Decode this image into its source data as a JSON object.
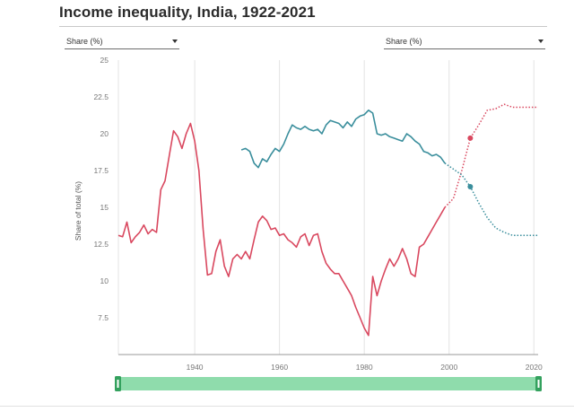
{
  "title": "Income inequality, India, 1922-2021",
  "selectors": {
    "left": {
      "value": "Share (%)"
    },
    "right": {
      "value": "Share (%)"
    }
  },
  "chart_data": {
    "type": "line",
    "title": "Income inequality, India, 1922-2021",
    "xlabel": "",
    "ylabel": "Share of total (%)",
    "xlim": [
      1922,
      2021
    ],
    "ylim": [
      5,
      25
    ],
    "x_ticks": [
      1940,
      1960,
      1980,
      2000,
      2020
    ],
    "y_ticks": [
      7.5,
      10,
      12.5,
      15,
      17.5,
      20,
      22.5,
      25
    ],
    "grid": "vertical",
    "colors": {
      "red": "#d9485f",
      "teal": "#3a8e9c",
      "slider": "#8fdcac",
      "slider_handle": "#34a15e"
    },
    "series": [
      {
        "name": "Red series",
        "color": "#d9485f",
        "points": [
          [
            1922,
            13.1
          ],
          [
            1923,
            13.0
          ],
          [
            1924,
            14.0
          ],
          [
            1925,
            12.6
          ],
          [
            1926,
            13.0
          ],
          [
            1927,
            13.3
          ],
          [
            1928,
            13.8
          ],
          [
            1929,
            13.2
          ],
          [
            1930,
            13.5
          ],
          [
            1931,
            13.3
          ],
          [
            1932,
            16.2
          ],
          [
            1933,
            16.8
          ],
          [
            1934,
            18.5
          ],
          [
            1935,
            20.2
          ],
          [
            1936,
            19.8
          ],
          [
            1937,
            19.0
          ],
          [
            1938,
            20.0
          ],
          [
            1939,
            20.7
          ],
          [
            1940,
            19.5
          ],
          [
            1941,
            17.5
          ],
          [
            1942,
            13.5
          ],
          [
            1943,
            10.4
          ],
          [
            1944,
            10.5
          ],
          [
            1945,
            12.0
          ],
          [
            1946,
            12.8
          ],
          [
            1947,
            11.0
          ],
          [
            1948,
            10.3
          ],
          [
            1949,
            11.5
          ],
          [
            1950,
            11.8
          ],
          [
            1951,
            11.5
          ],
          [
            1952,
            12.0
          ],
          [
            1953,
            11.5
          ],
          [
            1954,
            12.8
          ],
          [
            1955,
            14.0
          ],
          [
            1956,
            14.4
          ],
          [
            1957,
            14.1
          ],
          [
            1958,
            13.5
          ],
          [
            1959,
            13.6
          ],
          [
            1960,
            13.1
          ],
          [
            1961,
            13.2
          ],
          [
            1962,
            12.8
          ],
          [
            1963,
            12.6
          ],
          [
            1964,
            12.3
          ],
          [
            1965,
            13.0
          ],
          [
            1966,
            13.2
          ],
          [
            1967,
            12.4
          ],
          [
            1968,
            13.1
          ],
          [
            1969,
            13.2
          ],
          [
            1970,
            12.0
          ],
          [
            1971,
            11.2
          ],
          [
            1972,
            10.8
          ],
          [
            1973,
            10.5
          ],
          [
            1974,
            10.5
          ],
          [
            1975,
            10.0
          ],
          [
            1976,
            9.5
          ],
          [
            1977,
            9.0
          ],
          [
            1978,
            8.2
          ],
          [
            1979,
            7.5
          ],
          [
            1980,
            6.8
          ],
          [
            1981,
            6.3
          ],
          [
            1982,
            10.3
          ],
          [
            1983,
            9.0
          ],
          [
            1984,
            10.0
          ],
          [
            1985,
            10.8
          ],
          [
            1986,
            11.5
          ],
          [
            1987,
            11.0
          ],
          [
            1988,
            11.5
          ],
          [
            1989,
            12.2
          ],
          [
            1990,
            11.5
          ],
          [
            1991,
            10.5
          ],
          [
            1992,
            10.3
          ],
          [
            1993,
            12.3
          ],
          [
            1994,
            12.5
          ],
          [
            1995,
            13.0
          ],
          [
            1996,
            13.5
          ],
          [
            1997,
            14.0
          ],
          [
            1998,
            14.5
          ],
          [
            1999,
            15.0
          ]
        ],
        "interpolated": [
          [
            1999,
            15.0
          ],
          [
            2001,
            15.6
          ],
          [
            2003,
            17.5
          ],
          [
            2005,
            19.7
          ],
          [
            2007,
            20.6
          ],
          [
            2009,
            21.6
          ],
          [
            2011,
            21.7
          ],
          [
            2013,
            22.0
          ],
          [
            2015,
            21.8
          ],
          [
            2021,
            21.8
          ]
        ],
        "highlight": [
          2005,
          19.7
        ]
      },
      {
        "name": "Teal series",
        "color": "#3a8e9c",
        "points": [
          [
            1951,
            18.9
          ],
          [
            1952,
            19.0
          ],
          [
            1953,
            18.8
          ],
          [
            1954,
            18.0
          ],
          [
            1955,
            17.7
          ],
          [
            1956,
            18.3
          ],
          [
            1957,
            18.1
          ],
          [
            1958,
            18.6
          ],
          [
            1959,
            19.0
          ],
          [
            1960,
            18.8
          ],
          [
            1961,
            19.3
          ],
          [
            1962,
            20.0
          ],
          [
            1963,
            20.6
          ],
          [
            1964,
            20.4
          ],
          [
            1965,
            20.3
          ],
          [
            1966,
            20.5
          ],
          [
            1967,
            20.3
          ],
          [
            1968,
            20.2
          ],
          [
            1969,
            20.3
          ],
          [
            1970,
            20.0
          ],
          [
            1971,
            20.6
          ],
          [
            1972,
            20.9
          ],
          [
            1973,
            20.8
          ],
          [
            1974,
            20.7
          ],
          [
            1975,
            20.4
          ],
          [
            1976,
            20.8
          ],
          [
            1977,
            20.5
          ],
          [
            1978,
            21.0
          ],
          [
            1979,
            21.2
          ],
          [
            1980,
            21.3
          ],
          [
            1981,
            21.6
          ],
          [
            1982,
            21.4
          ],
          [
            1983,
            20.0
          ],
          [
            1984,
            19.9
          ],
          [
            1985,
            20.0
          ],
          [
            1986,
            19.8
          ],
          [
            1987,
            19.7
          ],
          [
            1988,
            19.6
          ],
          [
            1989,
            19.5
          ],
          [
            1990,
            20.0
          ],
          [
            1991,
            19.8
          ],
          [
            1992,
            19.5
          ],
          [
            1993,
            19.3
          ],
          [
            1994,
            18.8
          ],
          [
            1995,
            18.7
          ],
          [
            1996,
            18.5
          ],
          [
            1997,
            18.6
          ],
          [
            1998,
            18.4
          ],
          [
            1999,
            18.0
          ]
        ],
        "interpolated": [
          [
            1999,
            18.0
          ],
          [
            2001,
            17.6
          ],
          [
            2003,
            17.2
          ],
          [
            2005,
            16.4
          ],
          [
            2007,
            15.3
          ],
          [
            2009,
            14.3
          ],
          [
            2011,
            13.6
          ],
          [
            2013,
            13.3
          ],
          [
            2015,
            13.1
          ],
          [
            2021,
            13.1
          ]
        ],
        "highlight": [
          2005,
          16.4
        ]
      }
    ]
  }
}
